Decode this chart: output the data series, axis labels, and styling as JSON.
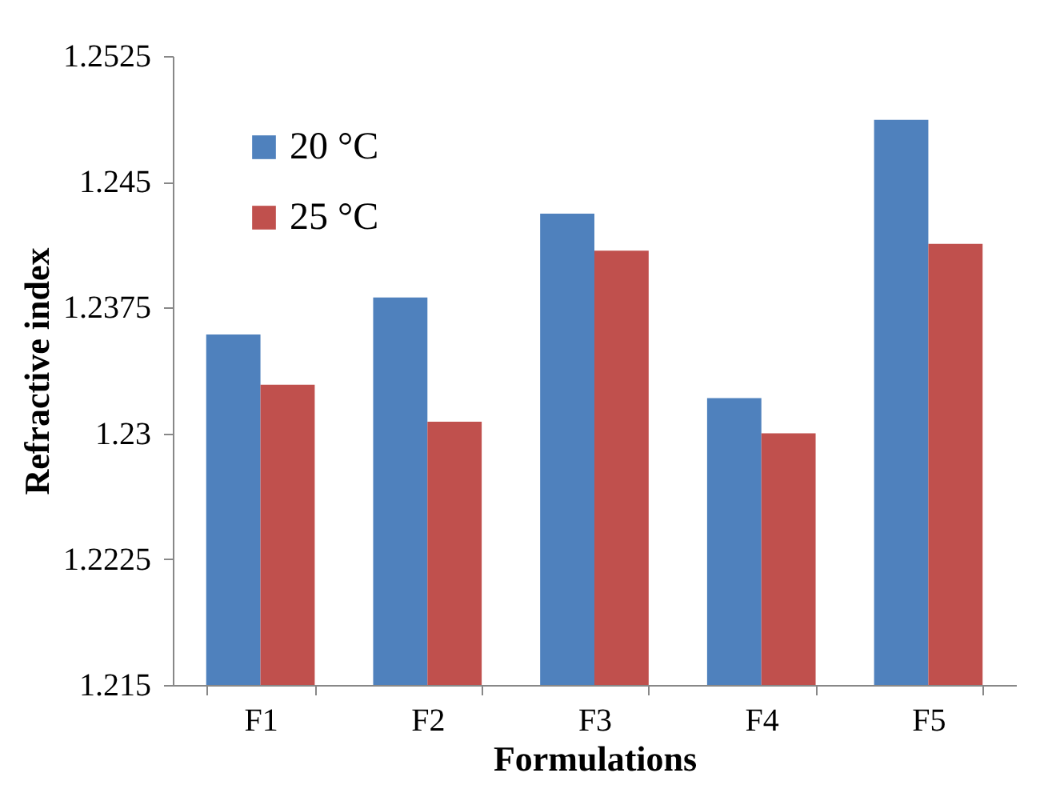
{
  "chart_data": {
    "type": "bar",
    "xlabel": "Formulations",
    "ylabel": "Refractive index",
    "categories": [
      "F1",
      "F2",
      "F3",
      "F4",
      "F5"
    ],
    "series": [
      {
        "name": "20 °C",
        "color": "#4f81bd",
        "values": [
          1.2359,
          1.2381,
          1.2431,
          1.2321,
          1.2487
        ]
      },
      {
        "name": "25 °C",
        "color": "#c0504d",
        "values": [
          1.2329,
          1.2307,
          1.2409,
          1.23,
          1.2413
        ]
      }
    ],
    "ylim": [
      1.215,
      1.2525
    ],
    "yticks": [
      1.215,
      1.2225,
      1.23,
      1.2375,
      1.245,
      1.2525
    ],
    "grid": false,
    "legend": "top left"
  }
}
